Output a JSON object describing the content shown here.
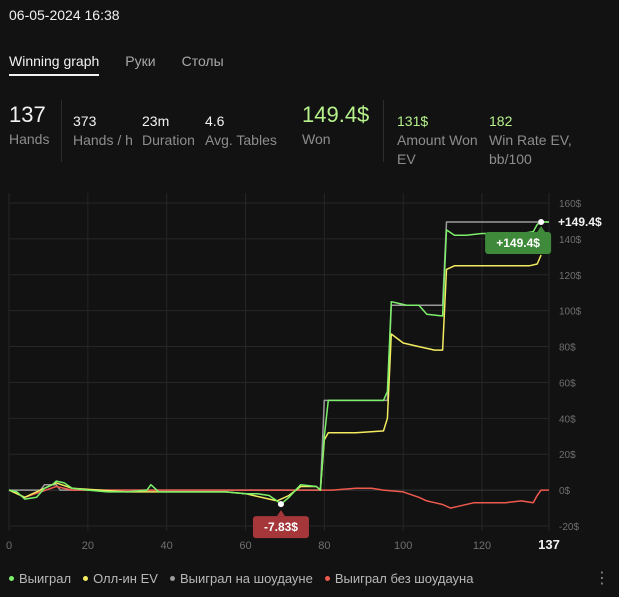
{
  "header": {
    "datetime": "06-05-2024 16:38"
  },
  "tabs": [
    {
      "label": "Winning graph",
      "active": true
    },
    {
      "label": "Руки",
      "active": false
    },
    {
      "label": "Столы",
      "active": false
    }
  ],
  "stats": {
    "hands": {
      "value": "137",
      "label": "Hands"
    },
    "hands_per_hour": {
      "value": "373",
      "label": "Hands / h"
    },
    "duration": {
      "value": "23m",
      "label": "Duration"
    },
    "avg_tables": {
      "value": "4.6",
      "label": "Avg. Tables"
    },
    "won": {
      "value": "149.4$",
      "label": "Won"
    },
    "amount_won_ev": {
      "value": "131$",
      "label1": "Amount Won",
      "label2": "EV"
    },
    "win_rate_ev": {
      "value": "182",
      "label1": "Win Rate EV,",
      "label2": "bb/100"
    }
  },
  "colors": {
    "won": "#7cf06a",
    "allin_ev": "#f4ec60",
    "showdown": "#9b9b9b",
    "non_showdown": "#ef5a4f",
    "badge_pos": "#3e8a3a",
    "badge_neg": "#a5373a"
  },
  "chart_data": {
    "type": "line",
    "xlim": [
      0,
      137
    ],
    "ylim": [
      -20,
      160
    ],
    "x_ticks": [
      0,
      20,
      40,
      60,
      80,
      100,
      120
    ],
    "x_end_label": "137",
    "y_ticks": [
      -20,
      0,
      20,
      40,
      60,
      80,
      100,
      120,
      140,
      160
    ],
    "y_tick_labels": [
      "-20$",
      "0$",
      "20$",
      "40$",
      "60$",
      "80$",
      "100$",
      "120$",
      "140$",
      "160$"
    ],
    "end_label": "+149.4$",
    "max_badge": "+149.4$",
    "min_badge": "-7.83$",
    "series": [
      {
        "name": "Выиграл",
        "color": "#7cf06a",
        "points": [
          [
            0,
            0
          ],
          [
            2,
            -1
          ],
          [
            4,
            -5
          ],
          [
            7,
            -4
          ],
          [
            9,
            1
          ],
          [
            11,
            3
          ],
          [
            12,
            5
          ],
          [
            14,
            4
          ],
          [
            16,
            1
          ],
          [
            20,
            0
          ],
          [
            25,
            -1
          ],
          [
            30,
            -1
          ],
          [
            35,
            0
          ],
          [
            36,
            3
          ],
          [
            38,
            -1
          ],
          [
            42,
            -1
          ],
          [
            50,
            -1
          ],
          [
            55,
            -1
          ],
          [
            60,
            -2
          ],
          [
            63,
            -2
          ],
          [
            66,
            -3
          ],
          [
            68,
            -6
          ],
          [
            69,
            -7.83
          ],
          [
            71,
            -4
          ],
          [
            74,
            3
          ],
          [
            78,
            2
          ],
          [
            79,
            0
          ],
          [
            80,
            30
          ],
          [
            81,
            50
          ],
          [
            85,
            50
          ],
          [
            90,
            50
          ],
          [
            95,
            50
          ],
          [
            96,
            55
          ],
          [
            97,
            105
          ],
          [
            99,
            104
          ],
          [
            101,
            103
          ],
          [
            104,
            103
          ],
          [
            106,
            98
          ],
          [
            110,
            97
          ],
          [
            111,
            145
          ],
          [
            113,
            142
          ],
          [
            116,
            142
          ],
          [
            120,
            143
          ],
          [
            125,
            143
          ],
          [
            130,
            143
          ],
          [
            133,
            144
          ],
          [
            134,
            148
          ],
          [
            135,
            149.4
          ],
          [
            137,
            149.4
          ]
        ]
      },
      {
        "name": "Олл-ин EV",
        "color": "#f4ec60",
        "points": [
          [
            0,
            0
          ],
          [
            4,
            -4
          ],
          [
            8,
            0
          ],
          [
            12,
            4
          ],
          [
            16,
            1
          ],
          [
            30,
            -1
          ],
          [
            40,
            -1
          ],
          [
            55,
            -1
          ],
          [
            60,
            -2
          ],
          [
            68,
            -6
          ],
          [
            71,
            -3
          ],
          [
            74,
            2
          ],
          [
            78,
            2
          ],
          [
            79,
            0
          ],
          [
            80,
            28
          ],
          [
            81,
            32
          ],
          [
            88,
            32
          ],
          [
            95,
            33
          ],
          [
            96,
            40
          ],
          [
            97,
            87
          ],
          [
            100,
            82
          ],
          [
            104,
            80
          ],
          [
            108,
            78
          ],
          [
            110,
            78
          ],
          [
            111,
            123
          ],
          [
            113,
            125
          ],
          [
            118,
            125
          ],
          [
            125,
            125
          ],
          [
            132,
            125
          ],
          [
            134,
            126
          ],
          [
            135,
            131
          ]
        ]
      },
      {
        "name": "Выиграл на шоудауне",
        "color": "#9b9b9b",
        "points": [
          [
            0,
            0
          ],
          [
            8,
            0
          ],
          [
            9,
            3
          ],
          [
            12,
            3
          ],
          [
            13,
            0
          ],
          [
            78,
            0
          ],
          [
            79,
            0
          ],
          [
            80,
            50
          ],
          [
            96,
            50
          ],
          [
            97,
            103
          ],
          [
            110,
            103
          ],
          [
            111,
            149.4
          ],
          [
            137,
            149.4
          ]
        ]
      },
      {
        "name": "Выиграл без шоудауна",
        "color": "#ef5a4f",
        "points": [
          [
            0,
            0
          ],
          [
            4,
            -4
          ],
          [
            8,
            -1
          ],
          [
            12,
            2
          ],
          [
            16,
            0
          ],
          [
            80,
            0
          ],
          [
            82,
            0
          ],
          [
            88,
            1
          ],
          [
            92,
            1
          ],
          [
            95,
            0
          ],
          [
            100,
            -1
          ],
          [
            104,
            -4
          ],
          [
            106,
            -6
          ],
          [
            108,
            -7
          ],
          [
            110,
            -8
          ],
          [
            112,
            -10
          ],
          [
            114,
            -9
          ],
          [
            118,
            -7
          ],
          [
            122,
            -7
          ],
          [
            126,
            -7
          ],
          [
            130,
            -6
          ],
          [
            133,
            -7
          ],
          [
            134,
            -3
          ],
          [
            135,
            0
          ],
          [
            137,
            0
          ]
        ]
      }
    ],
    "grid": true
  },
  "legend": [
    {
      "label": "Выиграл",
      "color": "#7cf06a"
    },
    {
      "label": "Олл-ин EV",
      "color": "#f4ec60"
    },
    {
      "label": "Выиграл на шоудауне",
      "color": "#9b9b9b"
    },
    {
      "label": "Выиграл без шоудауна",
      "color": "#ef5a4f"
    }
  ],
  "menu_icon": "more-vertical-icon"
}
